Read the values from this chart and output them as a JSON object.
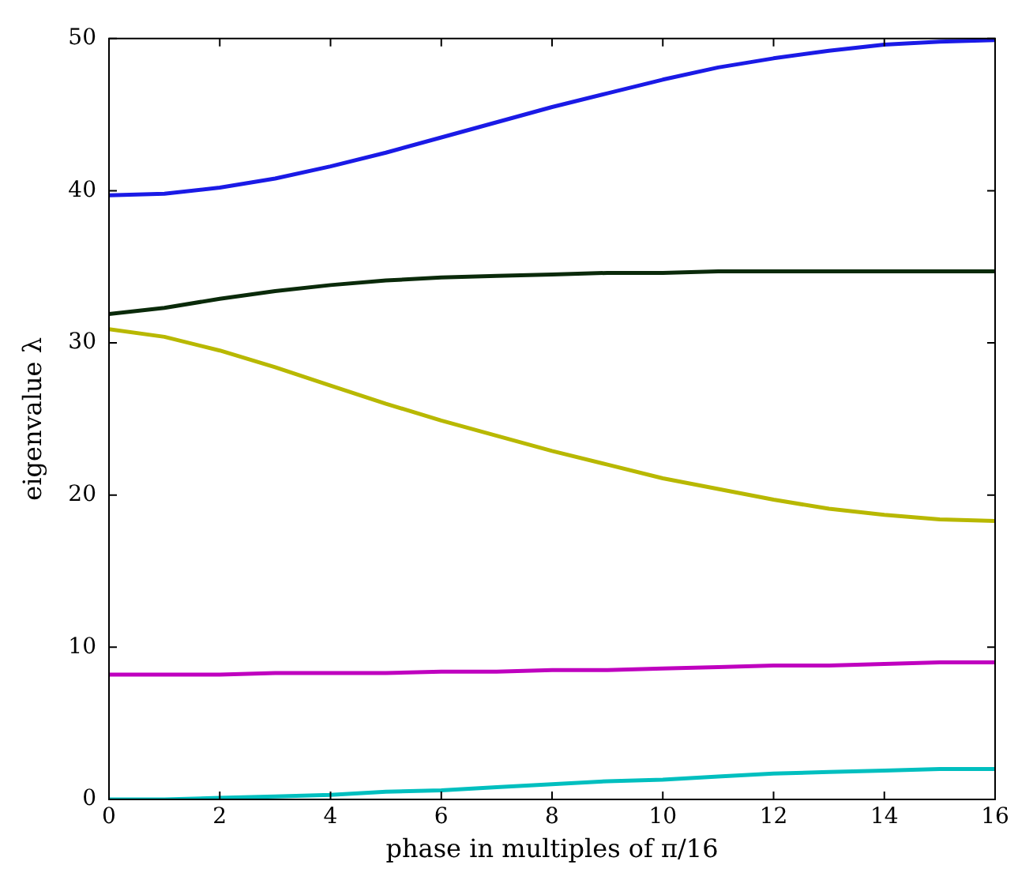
{
  "chart_data": {
    "type": "line",
    "xlabel": "phase in multiples of π/16",
    "ylabel": "eigenvalue λ",
    "x": [
      0,
      1,
      2,
      3,
      4,
      5,
      6,
      7,
      8,
      9,
      10,
      11,
      12,
      13,
      14,
      15,
      16
    ],
    "series": [
      {
        "color": "#1a1ae6",
        "values": [
          39.7,
          39.8,
          40.2,
          40.8,
          41.6,
          42.5,
          43.5,
          44.5,
          45.5,
          46.4,
          47.3,
          48.1,
          48.7,
          49.2,
          49.6,
          49.8,
          49.9
        ]
      },
      {
        "color": "#0a2a0a",
        "values": [
          31.9,
          32.3,
          32.9,
          33.4,
          33.8,
          34.1,
          34.3,
          34.4,
          34.5,
          34.6,
          34.6,
          34.7,
          34.7,
          34.7,
          34.7,
          34.7,
          34.7
        ]
      },
      {
        "color": "#b8b800",
        "values": [
          30.9,
          30.4,
          29.5,
          28.4,
          27.2,
          26.0,
          24.9,
          23.9,
          22.9,
          22.0,
          21.1,
          20.4,
          19.7,
          19.1,
          18.7,
          18.4,
          18.3
        ]
      },
      {
        "color": "#bf00bf",
        "values": [
          8.2,
          8.2,
          8.2,
          8.3,
          8.3,
          8.3,
          8.4,
          8.4,
          8.5,
          8.5,
          8.6,
          8.7,
          8.8,
          8.8,
          8.9,
          9.0,
          9.0
        ]
      },
      {
        "color": "#00bfbf",
        "values": [
          0,
          0,
          0.1,
          0.2,
          0.3,
          0.5,
          0.6,
          0.8,
          1.0,
          1.2,
          1.3,
          1.5,
          1.7,
          1.8,
          1.9,
          2.0,
          2.0
        ]
      }
    ],
    "xlim": [
      0,
      16
    ],
    "xticks": [
      0,
      2,
      4,
      6,
      8,
      10,
      12,
      14,
      16
    ],
    "ylim": [
      0,
      50
    ],
    "yticks": [
      0,
      10,
      20,
      30,
      40,
      50
    ],
    "grid": false,
    "legend": false,
    "marker": "none",
    "line_style": "solid"
  }
}
